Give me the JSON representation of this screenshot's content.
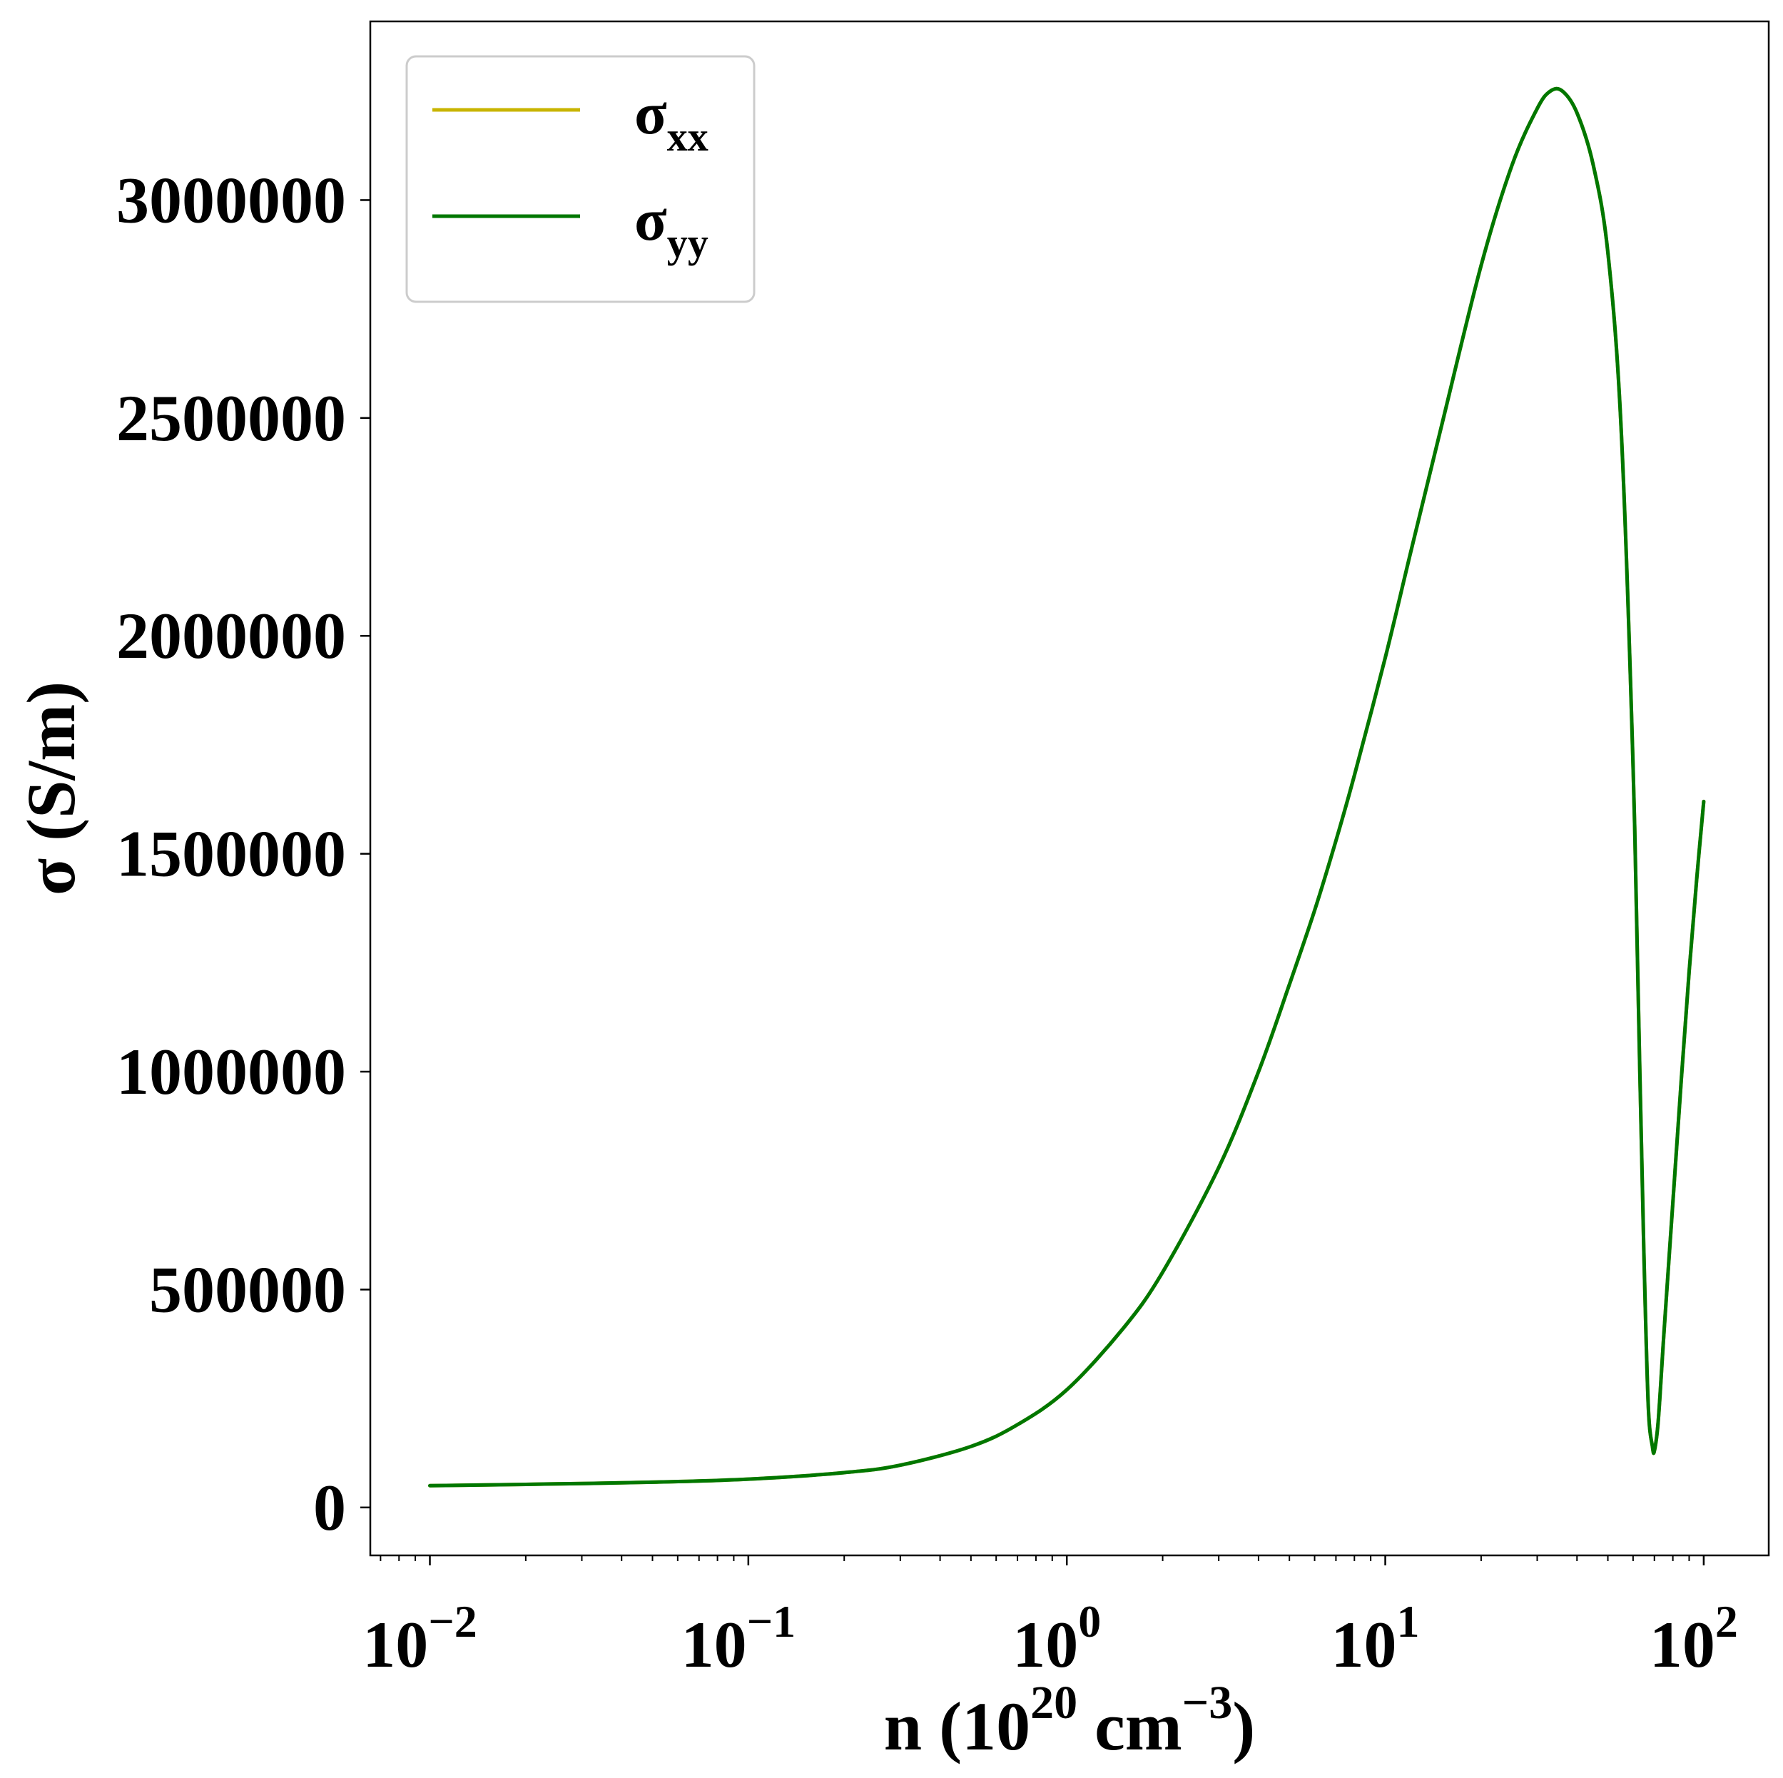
{
  "chart_data": {
    "type": "line",
    "title": "",
    "xlabel": {
      "base": "n (10",
      "exp1": "20",
      "mid": " cm",
      "exp2": "−3",
      "end": ")"
    },
    "ylabel": "σ (S/m)",
    "xscale": "log",
    "xlim": [
      0.0065,
      160
    ],
    "ylim": [
      -110000,
      3410000
    ],
    "grid": false,
    "legend_position": "top-left",
    "x_ticks": [
      {
        "value": 0.01,
        "base": "10",
        "exp": "−2"
      },
      {
        "value": 0.1,
        "base": "10",
        "exp": "−1"
      },
      {
        "value": 1,
        "base": "10",
        "exp": "0"
      },
      {
        "value": 10,
        "base": "10",
        "exp": "1"
      },
      {
        "value": 100,
        "base": "10",
        "exp": "2"
      }
    ],
    "y_ticks": [
      {
        "value": 0,
        "label": "0"
      },
      {
        "value": 500000,
        "label": "500000"
      },
      {
        "value": 1000000,
        "label": "1000000"
      },
      {
        "value": 1500000,
        "label": "1500000"
      },
      {
        "value": 2000000,
        "label": "2000000"
      },
      {
        "value": 2500000,
        "label": "2500000"
      },
      {
        "value": 3000000,
        "label": "3000000"
      }
    ],
    "x": [
      0.01,
      0.02,
      0.05,
      0.1,
      0.2,
      0.3,
      0.5,
      0.7,
      1,
      1.5,
      2,
      3,
      4,
      5,
      6,
      7,
      8,
      10,
      12,
      15,
      20,
      25,
      30,
      33,
      36,
      40,
      45,
      50,
      55,
      60,
      63,
      65,
      67,
      69,
      70,
      72,
      75,
      80,
      85,
      90,
      95,
      100
    ],
    "series": [
      {
        "name": "σxx",
        "name_base": "σ",
        "name_sub": "xx",
        "color": "#c8b400",
        "values": [
          50000,
          53000,
          58000,
          65000,
          80000,
          97000,
          140000,
          190000,
          270000,
          410000,
          540000,
          780000,
          1000000,
          1200000,
          1370000,
          1530000,
          1680000,
          1950000,
          2190000,
          2480000,
          2850000,
          3080000,
          3210000,
          3250000,
          3250000,
          3200000,
          3080000,
          2880000,
          2480000,
          1700000,
          1000000,
          560000,
          230000,
          140000,
          130000,
          200000,
          400000,
          700000,
          980000,
          1230000,
          1440000,
          1620000
        ]
      },
      {
        "name": "σyy",
        "name_base": "σ",
        "name_sub": "yy",
        "color": "#007700",
        "values": [
          50000,
          53000,
          58000,
          65000,
          80000,
          97000,
          140000,
          190000,
          270000,
          410000,
          540000,
          780000,
          1000000,
          1200000,
          1370000,
          1530000,
          1680000,
          1950000,
          2190000,
          2480000,
          2850000,
          3080000,
          3210000,
          3250000,
          3250000,
          3200000,
          3080000,
          2880000,
          2480000,
          1700000,
          1000000,
          560000,
          230000,
          140000,
          130000,
          200000,
          400000,
          700000,
          980000,
          1230000,
          1440000,
          1620000
        ]
      }
    ]
  }
}
